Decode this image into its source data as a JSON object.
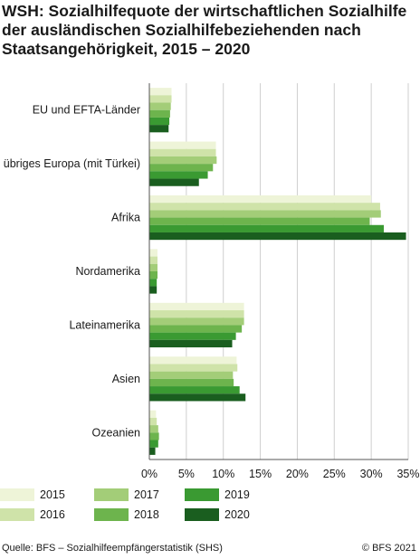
{
  "title": "WSH: Sozialhilfequote der wirtschaftlichen Sozialhilfe der ausländischen Sozialhilfebeziehenden nach Staatsangehörigkeit, 2015 – 2020",
  "chart_data": {
    "type": "bar",
    "orientation": "horizontal",
    "categories": [
      "EU und EFTA-Länder",
      "übriges Europa (mit Türkei)",
      "Afrika",
      "Nordamerika",
      "Lateinamerika",
      "Asien",
      "Ozeanien"
    ],
    "series": [
      {
        "name": "2015",
        "color": "#eef4d8",
        "values": [
          3.0,
          9.0,
          30.0,
          1.1,
          12.8,
          11.8,
          0.9
        ]
      },
      {
        "name": "2016",
        "color": "#cfe3a9",
        "values": [
          3.0,
          9.0,
          31.2,
          1.1,
          12.8,
          11.9,
          1.0
        ]
      },
      {
        "name": "2017",
        "color": "#a3cd78",
        "values": [
          2.9,
          9.1,
          31.3,
          1.1,
          12.8,
          11.3,
          1.2
        ]
      },
      {
        "name": "2018",
        "color": "#6db44d",
        "values": [
          2.8,
          8.6,
          29.8,
          1.1,
          12.5,
          11.4,
          1.3
        ]
      },
      {
        "name": "2019",
        "color": "#3a9a32",
        "values": [
          2.7,
          7.9,
          31.7,
          1.0,
          11.7,
          12.2,
          1.2
        ]
      },
      {
        "name": "2020",
        "color": "#1a5e1f",
        "values": [
          2.6,
          6.7,
          34.7,
          1.0,
          11.2,
          13.0,
          0.8
        ]
      }
    ],
    "xlim": [
      0,
      35
    ],
    "xticks": [
      "0%",
      "5%",
      "10%",
      "15%",
      "20%",
      "25%",
      "30%",
      "35%"
    ],
    "xlabel": "",
    "ylabel": "",
    "grid": true,
    "legend_position": "bottom"
  },
  "footer": {
    "source": "Quelle: BFS – Sozialhilfeempfängerstatistik (SHS)",
    "copyright": "© BFS 2021"
  }
}
